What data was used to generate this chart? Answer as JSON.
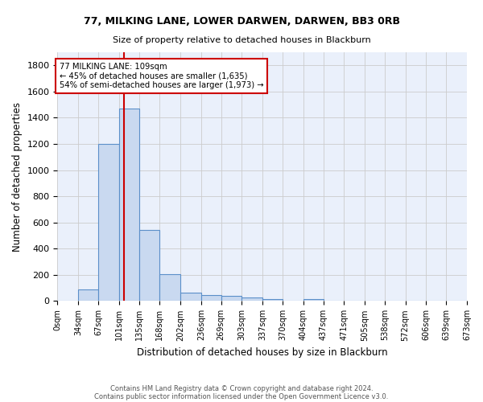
{
  "title1": "77, MILKING LANE, LOWER DARWEN, DARWEN, BB3 0RB",
  "title2": "Size of property relative to detached houses in Blackburn",
  "xlabel": "Distribution of detached houses by size in Blackburn",
  "ylabel": "Number of detached properties",
  "bin_labels": [
    "0sqm",
    "34sqm",
    "67sqm",
    "101sqm",
    "135sqm",
    "168sqm",
    "202sqm",
    "236sqm",
    "269sqm",
    "303sqm",
    "337sqm",
    "370sqm",
    "404sqm",
    "437sqm",
    "471sqm",
    "505sqm",
    "538sqm",
    "572sqm",
    "606sqm",
    "639sqm",
    "673sqm"
  ],
  "bar_values": [
    0,
    90,
    1200,
    1470,
    540,
    205,
    65,
    48,
    38,
    26,
    18,
    0,
    12,
    0,
    0,
    0,
    0,
    0,
    0,
    0
  ],
  "bar_color": "#c9d9f0",
  "bar_edgecolor": "#5b8fc9",
  "vline_x": 109,
  "vline_color": "#cc0000",
  "annotation_line1": "77 MILKING LANE: 109sqm",
  "annotation_line2": "← 45% of detached houses are smaller (1,635)",
  "annotation_line3": "54% of semi-detached houses are larger (1,973) →",
  "annotation_box_color": "white",
  "annotation_box_edgecolor": "#cc0000",
  "ylim": [
    0,
    1900
  ],
  "yticks": [
    0,
    200,
    400,
    600,
    800,
    1000,
    1200,
    1400,
    1600,
    1800
  ],
  "background_color": "#eaf0fb",
  "grid_color": "#cccccc",
  "footer1": "Contains HM Land Registry data © Crown copyright and database right 2024.",
  "footer2": "Contains public sector information licensed under the Open Government Licence v3.0."
}
